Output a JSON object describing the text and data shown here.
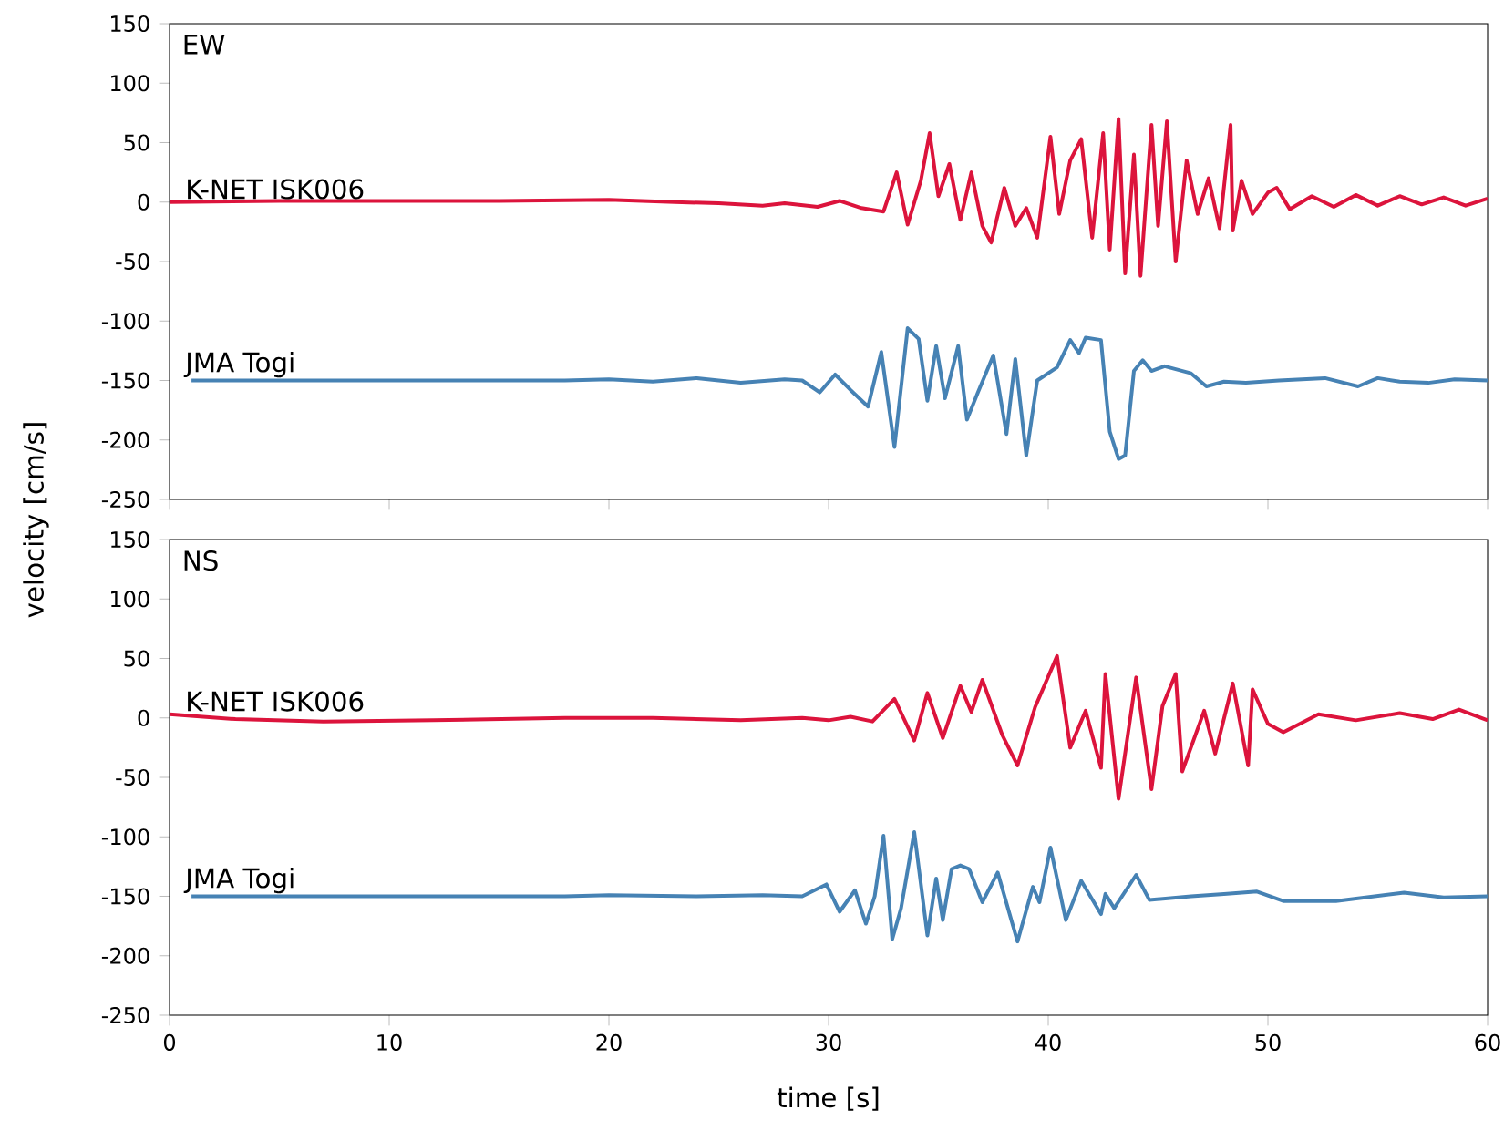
{
  "chart_data": [
    {
      "type": "line",
      "annotations": [
        "EW"
      ],
      "xlim": [
        0,
        60
      ],
      "ylim": [
        -250,
        150
      ],
      "xticks": [
        0,
        10,
        20,
        30,
        40,
        50,
        60
      ],
      "yticks": [
        -250,
        -200,
        -150,
        -100,
        -50,
        0,
        50,
        100,
        150
      ],
      "tick_labels": "y",
      "series": [
        {
          "name": "K-NET ISK006",
          "color": "#dc143c",
          "x": [
            0,
            5,
            10,
            15,
            20,
            23,
            25,
            27,
            28,
            29.5,
            30.5,
            31.5,
            32.5,
            33.1,
            33.6,
            34.2,
            34.6,
            35,
            35.5,
            36,
            36.5,
            37,
            37.4,
            38,
            38.5,
            39,
            39.5,
            40.1,
            40.5,
            41,
            41.5,
            42,
            42.5,
            42.8,
            43.2,
            43.5,
            43.9,
            44.2,
            44.7,
            45,
            45.4,
            45.8,
            46.3,
            46.8,
            47.3,
            47.8,
            48.3,
            48.4,
            48.8,
            49.3,
            50,
            50.4,
            51,
            52,
            53,
            54,
            55,
            56,
            57,
            58,
            59,
            60
          ],
          "values": [
            0,
            1,
            1,
            1,
            2,
            0,
            -1,
            -3,
            -1,
            -4,
            1,
            -5,
            -8,
            25,
            -19,
            18,
            58,
            5,
            32,
            -15,
            25,
            -20,
            -34,
            12,
            -20,
            -5,
            -30,
            55,
            -10,
            35,
            53,
            -30,
            58,
            -40,
            70,
            -60,
            40,
            -62,
            65,
            -20,
            68,
            -50,
            35,
            -10,
            20,
            -22,
            65,
            -24,
            18,
            -10,
            8,
            12,
            -6,
            5,
            -4,
            6,
            -3,
            5,
            -2,
            4,
            -3,
            3
          ]
        },
        {
          "name": "JMA Togi",
          "color": "#4682b4",
          "x": [
            1,
            10,
            18,
            20,
            22,
            24,
            26,
            28,
            28.8,
            29.6,
            30.3,
            31,
            31.8,
            32.4,
            33,
            33.6,
            34.1,
            34.5,
            34.9,
            35.3,
            35.9,
            36.3,
            36.8,
            37.5,
            38.1,
            38.5,
            39,
            39.5,
            40.4,
            41,
            41.4,
            41.7,
            42.4,
            42.8,
            43.2,
            43.5,
            43.9,
            44.3,
            44.7,
            45.3,
            46.5,
            47.2,
            48,
            49,
            50.5,
            52.6,
            54.1,
            55,
            56,
            57.3,
            58.5,
            60
          ],
          "values": [
            -150,
            -150,
            -150,
            -149,
            -151,
            -148,
            -152,
            -149,
            -150,
            -160,
            -145,
            -158,
            -172,
            -126,
            -206,
            -106,
            -115,
            -167,
            -121,
            -165,
            -121,
            -183,
            -160,
            -129,
            -195,
            -132,
            -213,
            -150,
            -139,
            -116,
            -127,
            -114,
            -116,
            -193,
            -216,
            -213,
            -142,
            -133,
            -142,
            -138,
            -144,
            -155,
            -151,
            -152,
            -150,
            -148,
            -155,
            -148,
            -151,
            -152,
            -149,
            -150
          ]
        }
      ]
    },
    {
      "type": "line",
      "annotations": [
        "NS"
      ],
      "xlabel": "time [s]",
      "ylabel": "velocity [cm/s]",
      "xlim": [
        0,
        60
      ],
      "ylim": [
        -250,
        150
      ],
      "xticks": [
        0,
        10,
        20,
        30,
        40,
        50,
        60
      ],
      "yticks": [
        -250,
        -200,
        -150,
        -100,
        -50,
        0,
        50,
        100,
        150
      ],
      "series": [
        {
          "name": "K-NET ISK006",
          "color": "#dc143c",
          "x": [
            0,
            3,
            7,
            12,
            18,
            22,
            26,
            28.8,
            30,
            31,
            32,
            33,
            33.9,
            34.5,
            35.2,
            36,
            36.5,
            37,
            37.9,
            38.6,
            39.4,
            40.4,
            41,
            41.7,
            42.4,
            42.6,
            43.2,
            44,
            44.7,
            45.2,
            45.8,
            46.1,
            47.1,
            47.6,
            48.4,
            49.1,
            49.3,
            50,
            50.7,
            52.3,
            54,
            56,
            57.5,
            58.7,
            60
          ],
          "values": [
            3,
            -1,
            -3,
            -2,
            0,
            0,
            -2,
            0,
            -2,
            1,
            -3,
            16,
            -19,
            21,
            -17,
            27,
            5,
            32,
            -14,
            -40,
            9,
            52,
            -25,
            6,
            -42,
            37,
            -68,
            34,
            -60,
            10,
            37,
            -45,
            6,
            -30,
            29,
            -40,
            24,
            -5,
            -12,
            3,
            -2,
            4,
            -1,
            7,
            -2
          ]
        },
        {
          "name": "JMA Togi",
          "color": "#4682b4",
          "x": [
            1,
            10,
            18,
            20,
            24,
            27,
            28.8,
            29.9,
            30.5,
            31.2,
            31.7,
            32.1,
            32.5,
            32.9,
            33.3,
            33.9,
            34.5,
            34.9,
            35.2,
            35.6,
            36,
            36.4,
            37,
            37.7,
            38.6,
            39.3,
            39.6,
            40.1,
            40.8,
            41.5,
            42.4,
            42.6,
            43,
            44,
            44.6,
            46.5,
            48,
            49.5,
            50.7,
            53.1,
            56.2,
            58,
            60
          ],
          "values": [
            -150,
            -150,
            -150,
            -149,
            -150,
            -149,
            -150,
            -140,
            -163,
            -145,
            -173,
            -150,
            -99,
            -186,
            -160,
            -96,
            -183,
            -135,
            -170,
            -127,
            -124,
            -127,
            -155,
            -130,
            -188,
            -142,
            -155,
            -109,
            -170,
            -137,
            -165,
            -148,
            -160,
            -132,
            -153,
            -150,
            -148,
            -146,
            -154,
            -154,
            -147,
            -151,
            -150
          ]
        }
      ]
    }
  ]
}
